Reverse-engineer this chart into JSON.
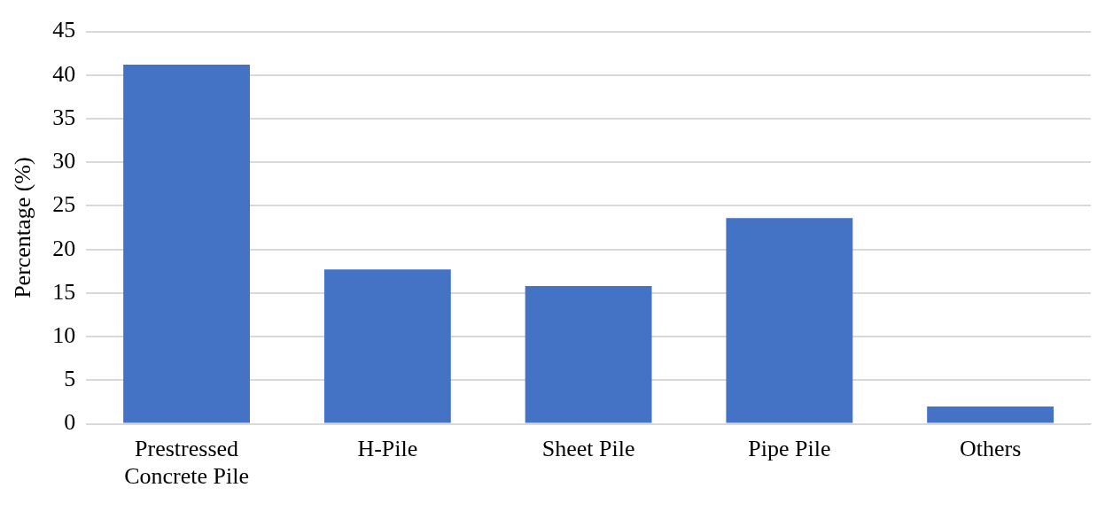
{
  "chart_data": {
    "type": "bar",
    "ylabel": "Percentage (%)",
    "categories": [
      "Prestressed\nConcrete Pile",
      "H-Pile",
      "Sheet Pile",
      "Pipe Pile",
      "Others"
    ],
    "values": [
      41.2,
      17.7,
      15.8,
      23.6,
      2.0
    ],
    "color": "#4472c4",
    "ylim": [
      0,
      45
    ],
    "yticks": [
      0,
      5,
      10,
      15,
      20,
      25,
      30,
      35,
      40,
      45
    ],
    "grid": "y",
    "legend": false
  }
}
